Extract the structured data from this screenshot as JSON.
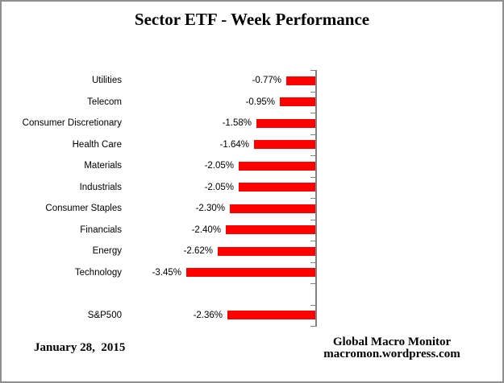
{
  "title": "Sector ETF - Week Performance",
  "footer": {
    "date": "January 28,  2015",
    "attribution_line1": "Global Macro Monitor",
    "attribution_line2": "macromon.wordpress.com"
  },
  "colors": {
    "bar": "#FF0000",
    "axis": "#808080",
    "frame_border": "#8F8F8F",
    "text": "#000000",
    "background": "#FFFFFF"
  },
  "chart_data": {
    "type": "bar",
    "orientation": "horizontal",
    "title": "Sector ETF - Week Performance",
    "categories": [
      "Utilities",
      "Telecom",
      "Consumer Discretionary",
      "Health Care",
      "Materials",
      "Industrials",
      "Consumer Staples",
      "Financials",
      "Energy",
      "Technology",
      "",
      "S&P500"
    ],
    "values": [
      -0.77,
      -0.95,
      -1.58,
      -1.64,
      -2.05,
      -2.05,
      -2.3,
      -2.4,
      -2.62,
      -3.45,
      null,
      -2.36
    ],
    "value_labels": [
      "-0.77%",
      "-0.95%",
      "-1.58%",
      "-1.64%",
      "-2.05%",
      "-2.05%",
      "-2.30%",
      "-2.40%",
      "-2.62%",
      "-3.45%",
      "",
      "-2.36%"
    ],
    "xlabel": "",
    "ylabel": "",
    "xlim": [
      -5,
      0
    ],
    "gridlines": false,
    "legend": "none",
    "data_label_position": "outside-end",
    "bar_color": "#FF0000",
    "axis_color": "#808080",
    "notes": "value axis not labeled; blank category row between Technology and S&P500"
  }
}
